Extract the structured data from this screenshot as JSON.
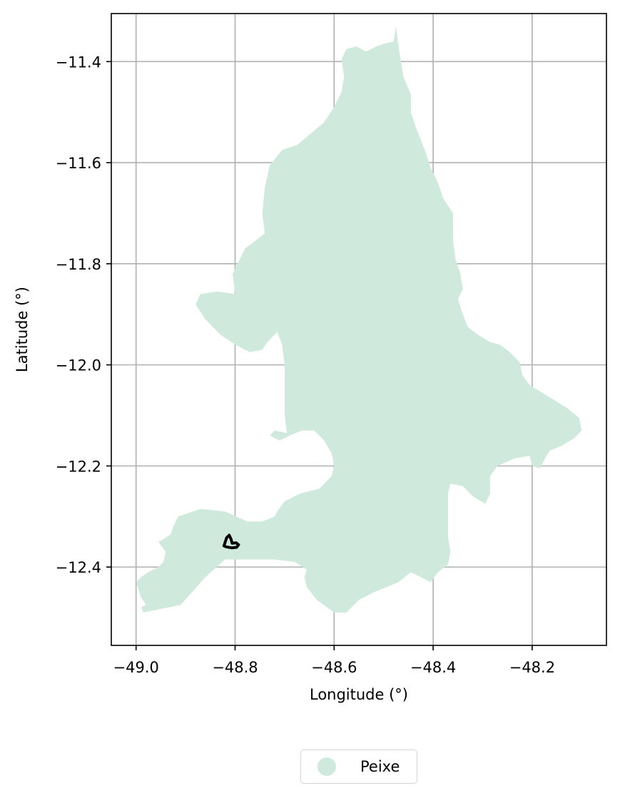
{
  "chart_data": {
    "type": "map",
    "xlabel": "Longitude (°)",
    "ylabel": "Latitude (°)",
    "xlim": [
      -49.05,
      -48.05
    ],
    "ylim": [
      -12.555,
      -11.305
    ],
    "xticks": [
      -49.0,
      -48.8,
      -48.6,
      -48.4,
      -48.2
    ],
    "xtick_labels": [
      "−49.0",
      "−48.8",
      "−48.6",
      "−48.4",
      "−48.2"
    ],
    "yticks": [
      -11.4,
      -11.6,
      -11.8,
      -12.0,
      -12.2,
      -12.4
    ],
    "ytick_labels": [
      "−11.4",
      "−11.6",
      "−11.8",
      "−12.0",
      "−12.2",
      "−12.4"
    ],
    "grid": true,
    "legend_position": "below",
    "legend": [
      {
        "name": "Peixe",
        "color": "#cfeadc"
      }
    ],
    "region": {
      "name": "Peixe",
      "fill": "#cfeadc",
      "boundary_lonlat": [
        [
          -48.475,
          -11.33
        ],
        [
          -48.48,
          -11.36
        ],
        [
          -48.5,
          -11.365
        ],
        [
          -48.515,
          -11.37
        ],
        [
          -48.535,
          -11.38
        ],
        [
          -48.555,
          -11.37
        ],
        [
          -48.575,
          -11.375
        ],
        [
          -48.585,
          -11.395
        ],
        [
          -48.58,
          -11.43
        ],
        [
          -48.585,
          -11.46
        ],
        [
          -48.6,
          -11.49
        ],
        [
          -48.62,
          -11.52
        ],
        [
          -48.65,
          -11.545
        ],
        [
          -48.675,
          -11.565
        ],
        [
          -48.705,
          -11.575
        ],
        [
          -48.73,
          -11.605
        ],
        [
          -48.74,
          -11.65
        ],
        [
          -48.745,
          -11.7
        ],
        [
          -48.74,
          -11.74
        ],
        [
          -48.76,
          -11.755
        ],
        [
          -48.78,
          -11.77
        ],
        [
          -48.79,
          -11.79
        ],
        [
          -48.805,
          -11.82
        ],
        [
          -48.8,
          -11.86
        ],
        [
          -48.835,
          -11.855
        ],
        [
          -48.87,
          -11.86
        ],
        [
          -48.88,
          -11.88
        ],
        [
          -48.86,
          -11.91
        ],
        [
          -48.83,
          -11.94
        ],
        [
          -48.8,
          -11.96
        ],
        [
          -48.77,
          -11.975
        ],
        [
          -48.745,
          -11.97
        ],
        [
          -48.735,
          -11.955
        ],
        [
          -48.715,
          -11.935
        ],
        [
          -48.705,
          -11.96
        ],
        [
          -48.7,
          -12.0
        ],
        [
          -48.7,
          -12.05
        ],
        [
          -48.7,
          -12.1
        ],
        [
          -48.695,
          -12.135
        ],
        [
          -48.72,
          -12.13
        ],
        [
          -48.73,
          -12.14
        ],
        [
          -48.71,
          -12.15
        ],
        [
          -48.69,
          -12.14
        ],
        [
          -48.665,
          -12.13
        ],
        [
          -48.64,
          -12.13
        ],
        [
          -48.62,
          -12.15
        ],
        [
          -48.605,
          -12.175
        ],
        [
          -48.6,
          -12.2
        ],
        [
          -48.605,
          -12.22
        ],
        [
          -48.63,
          -12.245
        ],
        [
          -48.67,
          -12.255
        ],
        [
          -48.7,
          -12.27
        ],
        [
          -48.715,
          -12.29
        ],
        [
          -48.72,
          -12.3
        ],
        [
          -48.745,
          -12.31
        ],
        [
          -48.775,
          -12.31
        ],
        [
          -48.82,
          -12.29
        ],
        [
          -48.87,
          -12.285
        ],
        [
          -48.9,
          -12.295
        ],
        [
          -48.915,
          -12.3
        ],
        [
          -48.925,
          -12.32
        ],
        [
          -48.93,
          -12.335
        ],
        [
          -48.945,
          -12.345
        ],
        [
          -48.955,
          -12.35
        ],
        [
          -48.94,
          -12.37
        ],
        [
          -48.945,
          -12.39
        ],
        [
          -48.955,
          -12.4
        ],
        [
          -48.975,
          -12.41
        ],
        [
          -48.99,
          -12.42
        ],
        [
          -49.0,
          -12.43
        ],
        [
          -48.995,
          -12.445
        ],
        [
          -48.99,
          -12.46
        ],
        [
          -48.98,
          -12.475
        ],
        [
          -48.99,
          -12.48
        ],
        [
          -48.985,
          -12.49
        ],
        [
          -48.91,
          -12.475
        ],
        [
          -48.86,
          -12.42
        ],
        [
          -48.82,
          -12.385
        ],
        [
          -48.77,
          -12.385
        ],
        [
          -48.72,
          -12.385
        ],
        [
          -48.68,
          -12.39
        ],
        [
          -48.655,
          -12.405
        ],
        [
          -48.66,
          -12.42
        ],
        [
          -48.655,
          -12.44
        ],
        [
          -48.635,
          -12.465
        ],
        [
          -48.6,
          -12.49
        ],
        [
          -48.575,
          -12.49
        ],
        [
          -48.55,
          -12.465
        ],
        [
          -48.52,
          -12.45
        ],
        [
          -48.495,
          -12.44
        ],
        [
          -48.47,
          -12.43
        ],
        [
          -48.445,
          -12.41
        ],
        [
          -48.425,
          -12.42
        ],
        [
          -48.405,
          -12.43
        ],
        [
          -48.39,
          -12.41
        ],
        [
          -48.37,
          -12.395
        ],
        [
          -48.365,
          -12.37
        ],
        [
          -48.37,
          -12.34
        ],
        [
          -48.37,
          -12.3
        ],
        [
          -48.37,
          -12.255
        ],
        [
          -48.365,
          -12.235
        ],
        [
          -48.34,
          -12.24
        ],
        [
          -48.32,
          -12.26
        ],
        [
          -48.295,
          -12.275
        ],
        [
          -48.285,
          -12.255
        ],
        [
          -48.285,
          -12.22
        ],
        [
          -48.27,
          -12.2
        ],
        [
          -48.235,
          -12.185
        ],
        [
          -48.205,
          -12.18
        ],
        [
          -48.2,
          -12.2
        ],
        [
          -48.185,
          -12.205
        ],
        [
          -48.165,
          -12.17
        ],
        [
          -48.14,
          -12.16
        ],
        [
          -48.115,
          -12.145
        ],
        [
          -48.1,
          -12.13
        ],
        [
          -48.105,
          -12.105
        ],
        [
          -48.13,
          -12.085
        ],
        [
          -48.155,
          -12.07
        ],
        [
          -48.18,
          -12.055
        ],
        [
          -48.205,
          -12.04
        ],
        [
          -48.22,
          -12.02
        ],
        [
          -48.225,
          -11.995
        ],
        [
          -48.245,
          -11.975
        ],
        [
          -48.265,
          -11.96
        ],
        [
          -48.285,
          -11.955
        ],
        [
          -48.31,
          -11.94
        ],
        [
          -48.33,
          -11.925
        ],
        [
          -48.34,
          -11.9
        ],
        [
          -48.35,
          -11.87
        ],
        [
          -48.34,
          -11.85
        ],
        [
          -48.345,
          -11.82
        ],
        [
          -48.355,
          -11.79
        ],
        [
          -48.36,
          -11.75
        ],
        [
          -48.36,
          -11.7
        ],
        [
          -48.38,
          -11.67
        ],
        [
          -48.39,
          -11.64
        ],
        [
          -48.405,
          -11.61
        ],
        [
          -48.415,
          -11.58
        ],
        [
          -48.425,
          -11.555
        ],
        [
          -48.435,
          -11.53
        ],
        [
          -48.445,
          -11.5
        ],
        [
          -48.445,
          -11.465
        ],
        [
          -48.46,
          -11.43
        ],
        [
          -48.465,
          -11.4
        ],
        [
          -48.47,
          -11.37
        ],
        [
          -48.475,
          -11.33
        ]
      ]
    },
    "marker": {
      "type": "outline",
      "color": "#000000",
      "boundary_lonlat": [
        [
          -48.8225,
          -12.358
        ],
        [
          -48.817,
          -12.342
        ],
        [
          -48.812,
          -12.337
        ],
        [
          -48.808,
          -12.345
        ],
        [
          -48.806,
          -12.353
        ],
        [
          -48.798,
          -12.352
        ],
        [
          -48.793,
          -12.356
        ],
        [
          -48.797,
          -12.361
        ],
        [
          -48.807,
          -12.362
        ],
        [
          -48.818,
          -12.36
        ],
        [
          -48.8225,
          -12.358
        ]
      ]
    }
  }
}
